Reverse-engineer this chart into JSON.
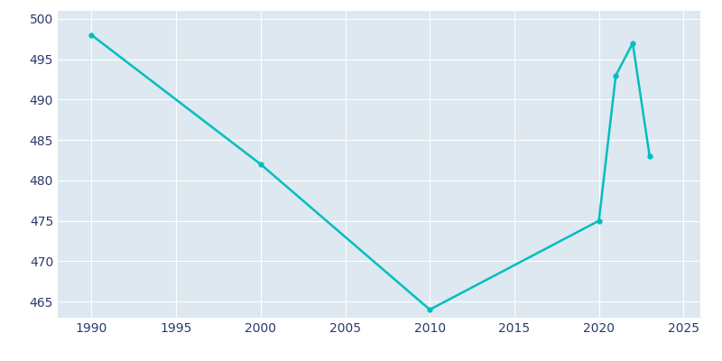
{
  "years": [
    1990,
    2000,
    2010,
    2020,
    2021,
    2022,
    2023
  ],
  "population": [
    498,
    482,
    464,
    475,
    493,
    497,
    483
  ],
  "line_color": "#00BEBE",
  "marker": "o",
  "marker_size": 3.5,
  "bg_color": "#FFFFFF",
  "plot_bg_color": "#DDE8F0",
  "grid_color": "#FFFFFF",
  "tick_color": "#2B3A6B",
  "xlim": [
    1988,
    2026
  ],
  "ylim": [
    463,
    501
  ],
  "xticks": [
    1990,
    1995,
    2000,
    2005,
    2010,
    2015,
    2020,
    2025
  ],
  "yticks": [
    465,
    470,
    475,
    480,
    485,
    490,
    495,
    500
  ],
  "linewidth": 1.8,
  "figsize": [
    8.0,
    4.0
  ],
  "dpi": 100
}
